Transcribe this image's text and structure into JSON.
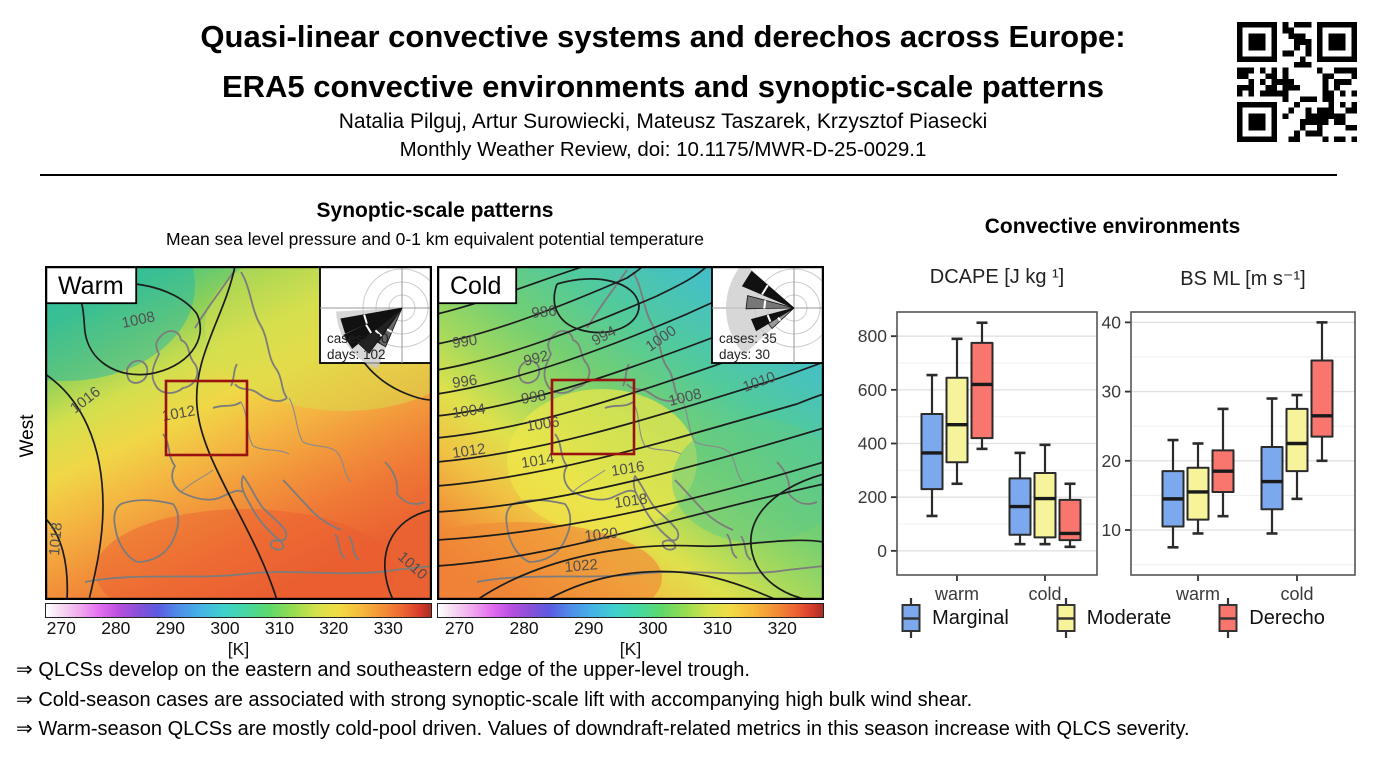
{
  "header": {
    "title_line1": "Quasi-linear convective systems and derechos across Europe:",
    "title_line2": "ERA5 convective environments and synoptic-scale patterns",
    "authors": "Natalia Pilguj, Artur Surowiecki, Mateusz Taszarek, Krzysztof Piasecki",
    "journal": "Monthly Weather Review, doi: 10.1175/MWR-D-25-0029.1"
  },
  "synoptic": {
    "title": "Synoptic-scale patterns",
    "subtitle": "Mean sea level pressure and 0-1 km equivalent potential temperature",
    "row_label": "West",
    "panels": [
      {
        "label": "Warm",
        "rose": {
          "cases": "cases:120",
          "days": "days: 102"
        },
        "contour_labels": [
          "1008",
          "1012",
          "1016",
          "1018",
          "1010"
        ],
        "colorbar": {
          "ticks": [
            270,
            280,
            290,
            300,
            310,
            320,
            330
          ],
          "range": [
            267,
            338
          ],
          "unit": "[K]"
        }
      },
      {
        "label": "Cold",
        "rose": {
          "cases": "cases: 35",
          "days": "days: 30"
        },
        "contour_labels": [
          "986",
          "990",
          "992",
          "994",
          "1000",
          "996",
          "998",
          "1008",
          "1010",
          "1004",
          "1006",
          "1012",
          "1014",
          "1016",
          "1018",
          "1020",
          "1022"
        ],
        "colorbar": {
          "ticks": [
            270,
            280,
            290,
            300,
            310,
            320
          ],
          "range": [
            266.5,
            326.5
          ],
          "unit": "[K]"
        }
      }
    ]
  },
  "convective": {
    "title": "Convective environments"
  },
  "chart_data": [
    {
      "type": "boxplot",
      "title": "DCAPE [J kg ¹]",
      "categories": [
        "warm",
        "cold"
      ],
      "yticks": [
        0,
        200,
        400,
        600,
        800
      ],
      "ylim": [
        -90,
        890
      ],
      "minor_step": 100,
      "series": [
        {
          "name": "Marginal",
          "color": "#7CA9EE",
          "boxes": [
            {
              "min": 130,
              "q1": 230,
              "median": 365,
              "q3": 510,
              "max": 655
            },
            {
              "min": 25,
              "q1": 60,
              "median": 165,
              "q3": 270,
              "max": 365
            }
          ]
        },
        {
          "name": "Moderate",
          "color": "#F7F39B",
          "boxes": [
            {
              "min": 250,
              "q1": 330,
              "median": 470,
              "q3": 645,
              "max": 790
            },
            {
              "min": 25,
              "q1": 50,
              "median": 195,
              "q3": 290,
              "max": 395
            }
          ]
        },
        {
          "name": "Derecho",
          "color": "#F8766D",
          "boxes": [
            {
              "min": 380,
              "q1": 420,
              "median": 620,
              "q3": 775,
              "max": 850
            },
            {
              "min": 15,
              "q1": 40,
              "median": 65,
              "q3": 190,
              "max": 250
            }
          ]
        }
      ]
    },
    {
      "type": "boxplot",
      "title": "BS ML [m s⁻¹]",
      "categories": [
        "warm",
        "cold"
      ],
      "yticks": [
        10,
        20,
        30,
        40
      ],
      "ylim": [
        3.5,
        41.5
      ],
      "minor_step": 5,
      "series": [
        {
          "name": "Marginal",
          "color": "#7CA9EE",
          "boxes": [
            {
              "min": 7.5,
              "q1": 10.5,
              "median": 14.5,
              "q3": 18.5,
              "max": 23
            },
            {
              "min": 9.5,
              "q1": 13,
              "median": 17,
              "q3": 22,
              "max": 29
            }
          ]
        },
        {
          "name": "Moderate",
          "color": "#F7F39B",
          "boxes": [
            {
              "min": 9.5,
              "q1": 11.5,
              "median": 15.5,
              "q3": 19,
              "max": 22.5
            },
            {
              "min": 14.5,
              "q1": 18.5,
              "median": 22.5,
              "q3": 27.5,
              "max": 29.5
            }
          ]
        },
        {
          "name": "Derecho",
          "color": "#F8766D",
          "boxes": [
            {
              "min": 12,
              "q1": 15.5,
              "median": 18.5,
              "q3": 21.5,
              "max": 27.5
            },
            {
              "min": 20,
              "q1": 23.5,
              "median": 26.5,
              "q3": 34.5,
              "max": 40
            }
          ]
        }
      ]
    }
  ],
  "legend": {
    "items": [
      {
        "label": "Marginal",
        "color": "#7CA9EE"
      },
      {
        "label": "Moderate",
        "color": "#F7F39B"
      },
      {
        "label": "Derecho",
        "color": "#F8766D"
      }
    ]
  },
  "takeaways": [
    "⇒ QLCSs develop on the eastern and southeastern edge of the upper-level trough.",
    "⇒ Cold-season cases are associated with strong synoptic-scale lift with accompanying high bulk wind shear.",
    "⇒ Warm-season QLCSs are mostly cold-pool driven. Values of downdraft-related metrics in this season increase with QLCS severity."
  ],
  "colors": {
    "marginal": "#7CA9EE",
    "moderate": "#F7F39B",
    "derecho": "#F8766D",
    "analysis_box": "#991111"
  }
}
